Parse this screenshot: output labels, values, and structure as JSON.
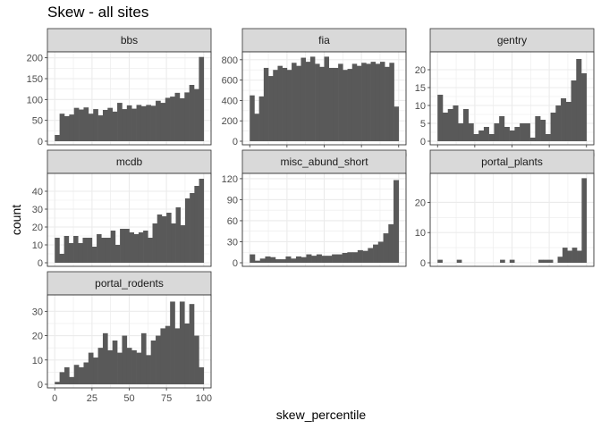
{
  "title": "Skew - all sites",
  "colors": {
    "bar": "#595959",
    "strip": "#d9d9d9",
    "grid": "#ebebeb",
    "border": "#333333",
    "tick_text": "#4d4d4d"
  },
  "chart_data": {
    "type": "bar",
    "xlabel": "skew_percentile",
    "ylabel": "count",
    "grid": true,
    "layout": "facet-wrap",
    "x_ticks": [
      0,
      25,
      50,
      75,
      100
    ],
    "xlim": [
      0,
      100
    ],
    "facets": [
      {
        "name": "bbs",
        "y_ticks": [
          0,
          50,
          100,
          150,
          200
        ],
        "ylim": [
          0,
          210
        ],
        "values": [
          15,
          66,
          60,
          64,
          80,
          76,
          81,
          66,
          77,
          62,
          75,
          80,
          71,
          92,
          77,
          86,
          78,
          87,
          84,
          87,
          85,
          97,
          92,
          104,
          107,
          116,
          103,
          117,
          135,
          125,
          202
        ]
      },
      {
        "name": "fia",
        "y_ticks": [
          0,
          200,
          400,
          600,
          800
        ],
        "ylim": [
          0,
          860
        ],
        "values": [
          450,
          270,
          440,
          720,
          640,
          700,
          740,
          720,
          700,
          770,
          740,
          820,
          780,
          830,
          760,
          730,
          830,
          720,
          720,
          760,
          700,
          710,
          760,
          740,
          770,
          760,
          780,
          760,
          780,
          730,
          770,
          340
        ]
      },
      {
        "name": "gentry",
        "y_ticks": [
          0,
          5,
          10,
          15,
          20
        ],
        "ylim": [
          0,
          24.5
        ],
        "values": [
          13,
          8,
          9,
          10,
          5,
          9,
          5,
          2,
          3,
          4,
          2,
          5,
          7,
          4,
          3,
          4,
          5,
          5,
          1,
          7,
          6,
          2,
          8,
          10,
          12,
          11,
          17,
          23,
          19
        ]
      },
      {
        "name": "mcdb",
        "y_ticks": [
          0,
          10,
          20,
          30,
          40
        ],
        "ylim": [
          0,
          49
        ],
        "values": [
          14,
          5,
          15,
          11,
          15,
          11,
          14,
          14,
          9,
          16,
          14,
          14,
          18,
          10,
          19,
          19,
          17,
          16,
          17,
          18,
          14,
          22,
          27,
          26,
          28,
          22,
          31,
          21,
          36,
          39,
          43,
          47
        ]
      },
      {
        "name": "misc_abund_short",
        "y_ticks": [
          0,
          30,
          60,
          90,
          120
        ],
        "ylim": [
          0,
          125
        ],
        "values": [
          12,
          3,
          6,
          9,
          8,
          5,
          5,
          9,
          6,
          9,
          8,
          12,
          10,
          12,
          10,
          10,
          12,
          12,
          14,
          15,
          15,
          18,
          17,
          21,
          26,
          30,
          42,
          55,
          118
        ]
      },
      {
        "name": "portal_plants",
        "y_ticks": [
          0,
          10,
          20
        ],
        "ylim": [
          0,
          29
        ],
        "values": [
          1,
          0,
          0,
          0,
          1,
          0,
          0,
          0,
          0,
          0,
          0,
          0,
          0,
          1,
          0,
          1,
          0,
          0,
          0,
          0,
          0,
          1,
          1,
          1,
          0,
          2,
          5,
          4,
          5,
          4,
          28
        ]
      },
      {
        "name": "portal_rodents",
        "y_ticks": [
          0,
          10,
          20,
          30
        ],
        "ylim": [
          0,
          36
        ],
        "values": [
          1,
          5,
          7,
          3,
          8,
          7,
          9,
          13,
          11,
          15,
          21,
          14,
          18,
          13,
          20,
          15,
          14,
          13,
          21,
          12,
          18,
          20,
          23,
          24,
          34,
          23,
          34,
          25,
          33,
          20,
          7
        ]
      }
    ]
  }
}
